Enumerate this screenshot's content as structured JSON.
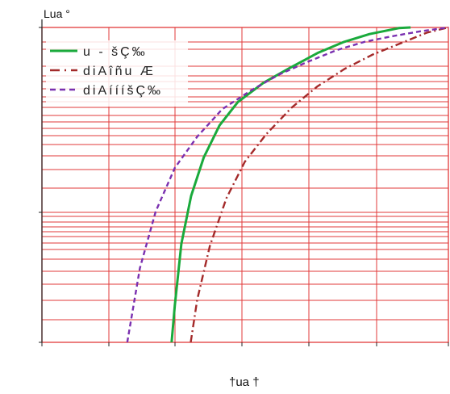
{
  "chart_data": {
    "type": "line",
    "title": "",
    "ylabel": "Lua °",
    "xlabel": "†ua †",
    "grid": true,
    "legend_position": "top-left",
    "xlim": [
      0,
      1
    ],
    "ylim": [
      0,
      1
    ],
    "series": [
      {
        "name": "u - šÇ‰",
        "color": "#1aaa3c",
        "style": "solid",
        "x": [
          0.319,
          0.327,
          0.343,
          0.367,
          0.398,
          0.437,
          0.482,
          0.545,
          0.608,
          0.68,
          0.743,
          0.806,
          0.878,
          0.907
        ],
        "y": [
          0.0,
          0.118,
          0.313,
          0.465,
          0.587,
          0.689,
          0.763,
          0.824,
          0.87,
          0.92,
          0.954,
          0.979,
          0.998,
          1.0
        ]
      },
      {
        "name": "diAîñu Æ",
        "color": "#a32a2a",
        "style": "dashdot",
        "x": [
          0.366,
          0.382,
          0.413,
          0.454,
          0.499,
          0.552,
          0.614,
          0.677,
          0.744,
          0.814,
          0.885,
          0.946,
          1.0
        ],
        "y": [
          0.0,
          0.135,
          0.306,
          0.458,
          0.573,
          0.661,
          0.745,
          0.812,
          0.868,
          0.914,
          0.951,
          0.983,
          1.0
        ]
      },
      {
        "name": "diAíííšÇ‰",
        "color": "#7a30b0",
        "style": "dashed",
        "x": [
          0.21,
          0.241,
          0.28,
          0.327,
          0.382,
          0.444,
          0.517,
          0.583,
          0.654,
          0.725,
          0.795,
          0.866,
          0.932,
          1.0
        ],
        "y": [
          0.0,
          0.236,
          0.416,
          0.554,
          0.653,
          0.741,
          0.802,
          0.85,
          0.891,
          0.928,
          0.955,
          0.973,
          0.988,
          1.0
        ]
      }
    ]
  }
}
